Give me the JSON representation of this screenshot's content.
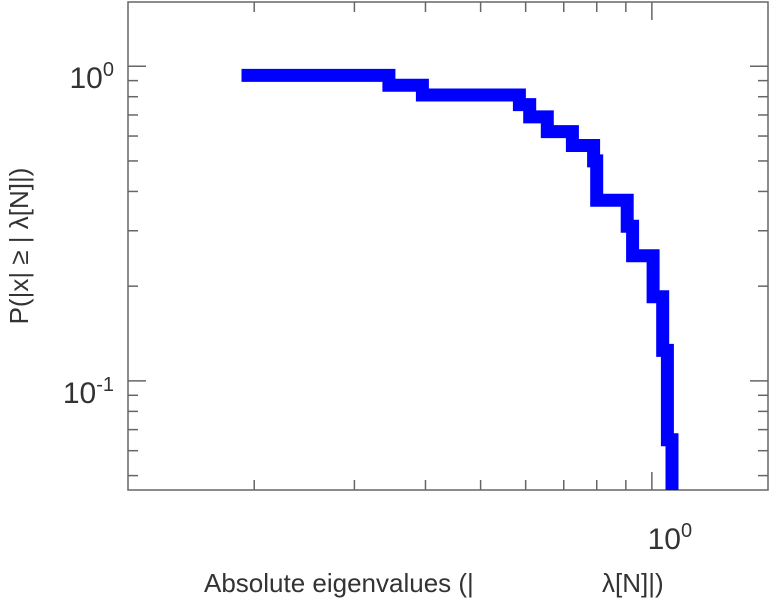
{
  "chart_data": {
    "type": "line",
    "subtype": "step-ccdf",
    "xscale": "log",
    "yscale": "log",
    "xlim": [
      0.12,
      1.6
    ],
    "ylim": [
      0.045,
      1.6
    ],
    "xlabel_part1": "Absolute eigenvalues (|",
    "xlabel_part2": "λ[N]|)",
    "ylabel": "P(|x|  ≥ | λ[N]|)",
    "x_tick_labels": [
      {
        "value": 1,
        "base": "10",
        "exp": "0"
      }
    ],
    "y_tick_labels": [
      {
        "value": 1,
        "base": "10",
        "exp": "0"
      },
      {
        "value": 0.1,
        "base": "10",
        "exp": "-1"
      }
    ],
    "series": [
      {
        "color": "#0000ff",
        "points": [
          [
            0.19,
            0.935
          ],
          [
            0.345,
            0.935
          ],
          [
            0.345,
            0.87
          ],
          [
            0.395,
            0.87
          ],
          [
            0.395,
            0.81
          ],
          [
            0.585,
            0.81
          ],
          [
            0.585,
            0.755
          ],
          [
            0.61,
            0.755
          ],
          [
            0.61,
            0.69
          ],
          [
            0.655,
            0.69
          ],
          [
            0.655,
            0.62
          ],
          [
            0.725,
            0.62
          ],
          [
            0.725,
            0.56
          ],
          [
            0.79,
            0.56
          ],
          [
            0.79,
            0.5
          ],
          [
            0.8,
            0.5
          ],
          [
            0.8,
            0.375
          ],
          [
            0.905,
            0.375
          ],
          [
            0.905,
            0.31
          ],
          [
            0.925,
            0.31
          ],
          [
            0.925,
            0.25
          ],
          [
            1.005,
            0.25
          ],
          [
            1.005,
            0.185
          ],
          [
            1.045,
            0.185
          ],
          [
            1.045,
            0.125
          ],
          [
            1.065,
            0.125
          ],
          [
            1.065,
            0.065
          ],
          [
            1.085,
            0.065
          ],
          [
            1.085,
            0.045
          ]
        ]
      }
    ],
    "grid": false
  }
}
